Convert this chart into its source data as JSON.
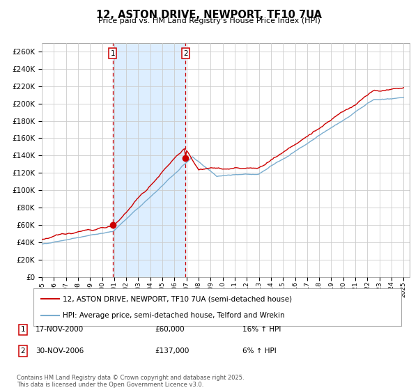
{
  "title": "12, ASTON DRIVE, NEWPORT, TF10 7UA",
  "subtitle": "Price paid vs. HM Land Registry's House Price Index (HPI)",
  "ylim": [
    0,
    270000
  ],
  "ytick_step": 20000,
  "xlim_start": 1995.0,
  "xlim_end": 2025.5,
  "red_line_label": "12, ASTON DRIVE, NEWPORT, TF10 7UA (semi-detached house)",
  "blue_line_label": "HPI: Average price, semi-detached house, Telford and Wrekin",
  "event1_date": "17-NOV-2000",
  "event1_price": "£60,000",
  "event1_hpi": "16% ↑ HPI",
  "event1_x": 2000.88,
  "event1_y": 60000,
  "event2_date": "30-NOV-2006",
  "event2_price": "£137,000",
  "event2_hpi": "6% ↑ HPI",
  "event2_x": 2006.92,
  "event2_y": 137000,
  "shade_start": 2000.88,
  "shade_end": 2006.92,
  "background_color": "#ffffff",
  "grid_color": "#cccccc",
  "red_color": "#cc0000",
  "blue_color": "#7aadcf",
  "shade_color": "#ddeeff",
  "vline_color": "#cc0000",
  "footer": "Contains HM Land Registry data © Crown copyright and database right 2025.\nThis data is licensed under the Open Government Licence v3.0."
}
